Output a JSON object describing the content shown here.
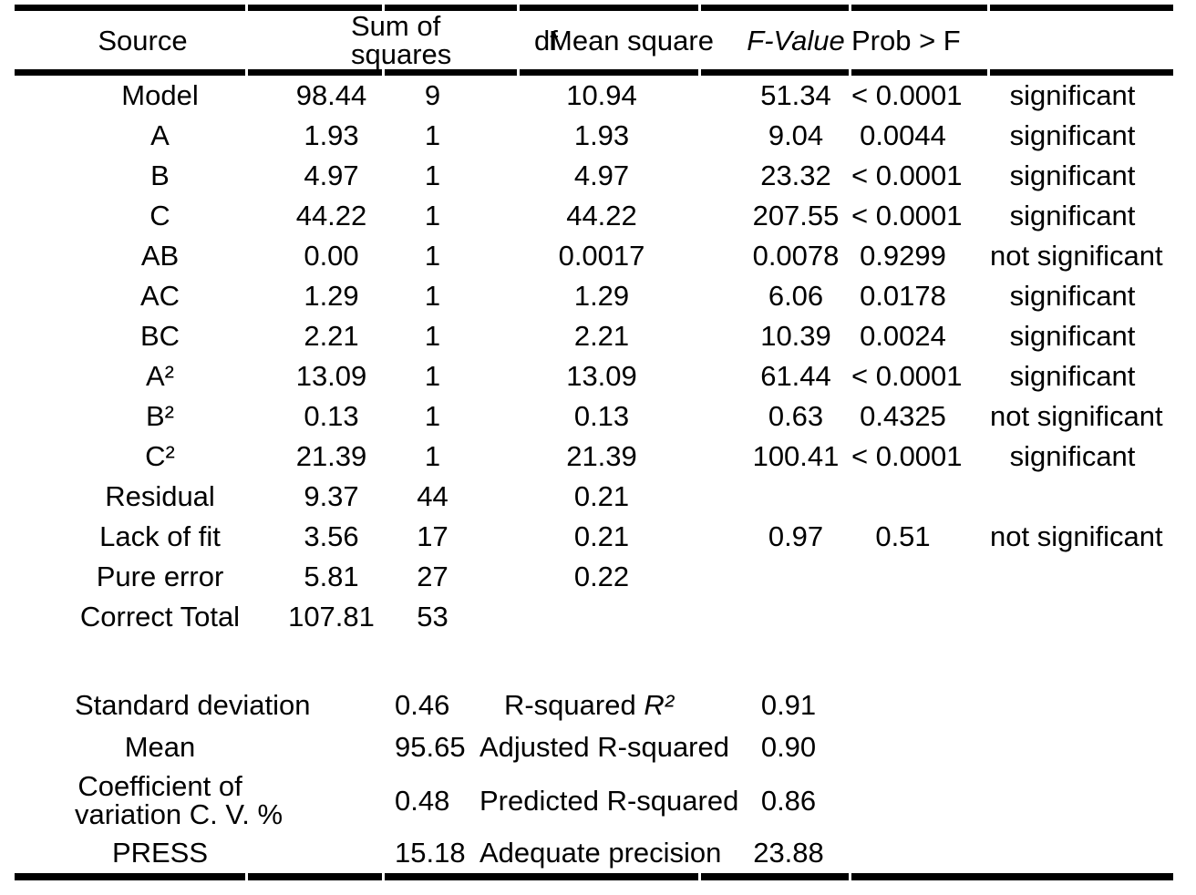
{
  "page": {
    "background": "#ffffff",
    "text_color": "#000000",
    "rule_color": "#000000"
  },
  "table": {
    "headers": {
      "source": "Source",
      "sum_of_squares": "Sum of\nsquares",
      "df": "df",
      "mean_square": "Mean square",
      "f_value": "F-Value",
      "prob_f": "Prob > F",
      "significance": ""
    },
    "rows": [
      {
        "source": "Model",
        "ss": "98.44",
        "df": "9",
        "ms": "10.94",
        "f": "51.34",
        "p": "< 0.0001",
        "sig": "significant"
      },
      {
        "source": "A",
        "ss": "1.93",
        "df": "1",
        "ms": "1.93",
        "f": "9.04",
        "p": "0.0044",
        "sig": "significant"
      },
      {
        "source": "B",
        "ss": "4.97",
        "df": "1",
        "ms": "4.97",
        "f": "23.32",
        "p": "< 0.0001",
        "sig": "significant"
      },
      {
        "source": "C",
        "ss": "44.22",
        "df": "1",
        "ms": "44.22",
        "f": "207.55",
        "p": "< 0.0001",
        "sig": "significant"
      },
      {
        "source": "AB",
        "ss": "0.00",
        "df": "1",
        "ms": "0.0017",
        "f": "0.0078",
        "p": "0.9299",
        "sig": "not significant"
      },
      {
        "source": "AC",
        "ss": "1.29",
        "df": "1",
        "ms": "1.29",
        "f": "6.06",
        "p": "0.0178",
        "sig": "significant"
      },
      {
        "source": "BC",
        "ss": "2.21",
        "df": "1",
        "ms": "2.21",
        "f": "10.39",
        "p": "0.0024",
        "sig": "significant"
      },
      {
        "source": "A²",
        "ss": "13.09",
        "df": "1",
        "ms": "13.09",
        "f": "61.44",
        "p": "< 0.0001",
        "sig": "significant"
      },
      {
        "source": "B²",
        "ss": "0.13",
        "df": "1",
        "ms": "0.13",
        "f": "0.63",
        "p": "0.4325",
        "sig": "not significant"
      },
      {
        "source": "C²",
        "ss": "21.39",
        "df": "1",
        "ms": "21.39",
        "f": "100.41",
        "p": "< 0.0001",
        "sig": "significant"
      },
      {
        "source": "Residual",
        "ss": "9.37",
        "df": "44",
        "ms": "0.21",
        "f": "",
        "p": "",
        "sig": ""
      },
      {
        "source": "Lack of fit",
        "ss": "3.56",
        "df": "17",
        "ms": "0.21",
        "f": "0.97",
        "p": "0.51",
        "sig": "not significant"
      },
      {
        "source": "Pure error",
        "ss": "5.81",
        "df": "27",
        "ms": "0.22",
        "f": "",
        "p": "",
        "sig": ""
      },
      {
        "source": "Correct Total",
        "ss": "107.81",
        "df": "53",
        "ms": "",
        "f": "",
        "p": "",
        "sig": ""
      }
    ],
    "summary": [
      {
        "label": "Standard deviation",
        "value": "0.46",
        "label2": "R-squared ",
        "label2_italic": "R²",
        "value2": "0.91"
      },
      {
        "label": "Mean",
        "value": "95.65",
        "label2": "Adjusted R-squared",
        "value2": "0.90"
      },
      {
        "label": "Coefficient of\nvariation C. V. %",
        "value": "0.48",
        "label2": "Predicted R-squared",
        "value2": "0.86"
      },
      {
        "label": "PRESS",
        "value": "15.18",
        "label2": "Adequate precision",
        "value2": "23.88"
      }
    ]
  }
}
